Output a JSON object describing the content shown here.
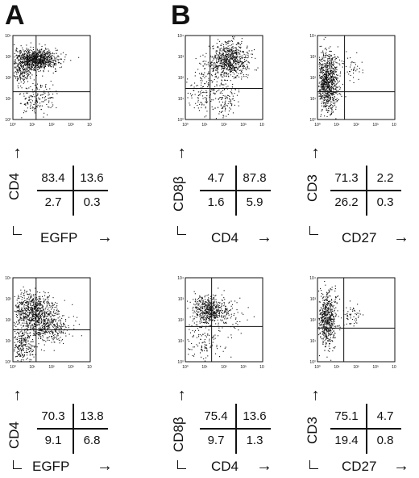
{
  "panel_labels": {
    "a": "A",
    "b": "B"
  },
  "chart_data": [
    {
      "type": "scatter",
      "xlabel": "EGFP",
      "ylabel": "CD4",
      "quadrants": {
        "ul": "83.4",
        "ur": "13.6",
        "ll": "2.7",
        "lr": "0.3"
      },
      "xticks": [
        "10⁰",
        "10¹",
        "10²",
        "10³",
        "10⁴"
      ],
      "yticks": [
        "10⁰",
        "10¹",
        "10²",
        "10³",
        "10⁴"
      ]
    },
    {
      "type": "scatter",
      "xlabel": "CD4",
      "ylabel": "CD8β",
      "quadrants": {
        "ul": "4.7",
        "ur": "87.8",
        "ll": "1.6",
        "lr": "5.9"
      },
      "xticks": [
        "10⁰",
        "10¹",
        "10²",
        "10³",
        "10⁴"
      ],
      "yticks": [
        "10⁰",
        "10¹",
        "10²",
        "10³",
        "10⁴"
      ]
    },
    {
      "type": "scatter",
      "xlabel": "CD27",
      "ylabel": "CD3",
      "quadrants": {
        "ul": "71.3",
        "ur": "2.2",
        "ll": "26.2",
        "lr": "0.3"
      },
      "xticks": [
        "10⁰",
        "10¹",
        "10²",
        "10³",
        "10⁴"
      ],
      "yticks": [
        "10⁰",
        "10¹",
        "10²",
        "10³",
        "10⁴"
      ]
    },
    {
      "type": "scatter",
      "xlabel": "EGFP",
      "ylabel": "CD4",
      "quadrants": {
        "ul": "70.3",
        "ur": "13.8",
        "ll": "9.1",
        "lr": "6.8"
      },
      "xticks": [
        "10⁰",
        "10¹",
        "10²",
        "10³",
        "10⁴"
      ],
      "yticks": [
        "10⁰",
        "10¹",
        "10²",
        "10³",
        "10⁴"
      ]
    },
    {
      "type": "scatter",
      "xlabel": "CD4",
      "ylabel": "CD8β",
      "quadrants": {
        "ul": "75.4",
        "ur": "13.6",
        "ll": "9.7",
        "lr": "1.3"
      },
      "xticks": [
        "10⁰",
        "10¹",
        "10²",
        "10³",
        "10⁴"
      ],
      "yticks": [
        "10⁰",
        "10¹",
        "10²",
        "10³",
        "10⁴"
      ]
    },
    {
      "type": "scatter",
      "xlabel": "CD27",
      "ylabel": "CD3",
      "quadrants": {
        "ul": "75.1",
        "ur": "4.7",
        "ll": "19.4",
        "lr": "0.8"
      },
      "xticks": [
        "10⁰",
        "10¹",
        "10²",
        "10³",
        "10⁴"
      ],
      "yticks": [
        "10⁰",
        "10¹",
        "10²",
        "10³",
        "10⁴"
      ]
    }
  ]
}
